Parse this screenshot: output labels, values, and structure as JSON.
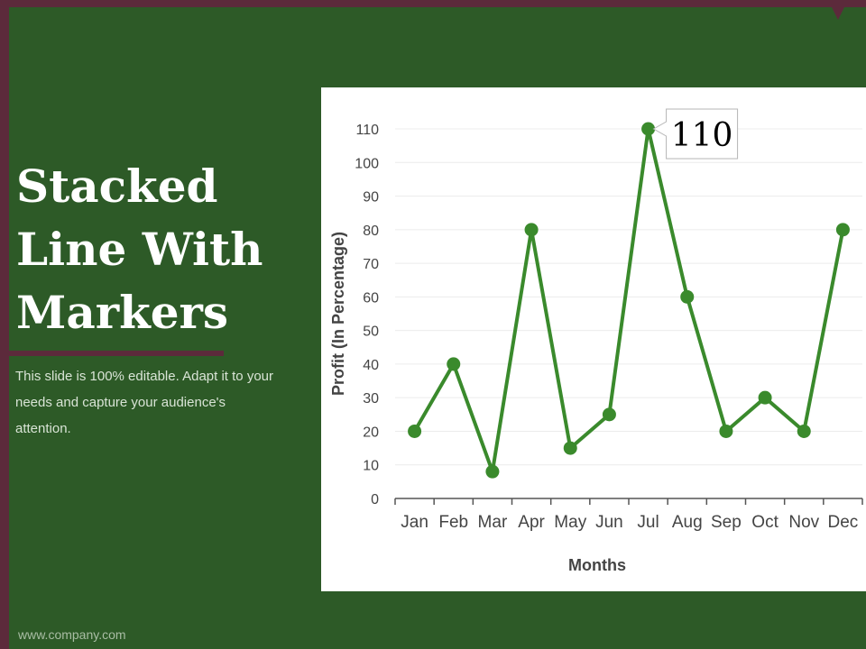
{
  "slide": {
    "title": "Stacked Line With Markers",
    "subtitle": "This slide is 100% editable. Adapt it to your needs and capture your audience's attention.",
    "footer": "www.company.com"
  },
  "colors": {
    "background": "#2d5a27",
    "accent": "#5c2a3b",
    "series": "#3a8a2c"
  },
  "chart_data": {
    "type": "line",
    "categories": [
      "Jan",
      "Feb",
      "Mar",
      "Apr",
      "May",
      "Jun",
      "Jul",
      "Aug",
      "Sep",
      "Oct",
      "Nov",
      "Dec"
    ],
    "series": [
      {
        "values": [
          20,
          40,
          8,
          80,
          15,
          25,
          110,
          60,
          20,
          30,
          20,
          80
        ]
      }
    ],
    "xlabel": "Months",
    "ylabel": "Profit  (In Percentage)",
    "ylim": [
      0,
      110
    ],
    "yticks": [
      0,
      10,
      20,
      30,
      40,
      50,
      60,
      70,
      80,
      90,
      100,
      110
    ],
    "grid": true,
    "markers": true,
    "callout": {
      "category": "Jul",
      "label": "110"
    }
  }
}
